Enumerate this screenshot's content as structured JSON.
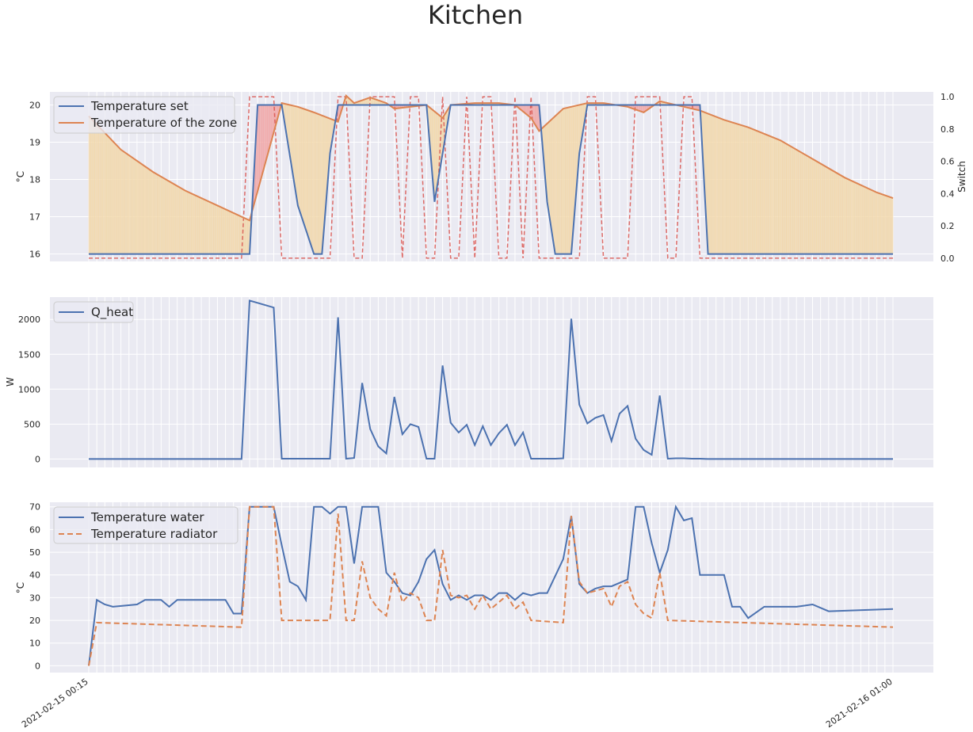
{
  "title": "Kitchen",
  "colors": {
    "background": "#EAEAF2",
    "grid": "#FFFFFF",
    "set": "#4C72B0",
    "zone": "#DD8452",
    "switch": "#D9534F",
    "fill_heating": "#F0A3A3",
    "fill_cooling": "#F2D7A8"
  },
  "chart_data": [
    {
      "type": "line",
      "ylabel": "°C",
      "ylabel2": "Switch",
      "ylim": [
        15.8,
        20.35
      ],
      "ylim2": [
        -0.02,
        1.03
      ],
      "yticks": [
        16,
        17,
        18,
        19,
        20
      ],
      "yticks2": [
        0.0,
        0.2,
        0.4,
        0.6,
        0.8,
        1.0
      ],
      "grid": true,
      "legend": "upper left",
      "legend_entries": [
        "Temperature set",
        "Temperature of the zone"
      ],
      "series": [
        {
          "name": "Temperature set",
          "x": [
            0,
            20,
            21,
            24,
            26,
            28,
            29,
            30,
            31,
            42,
            43,
            44,
            45,
            56,
            57,
            58,
            60,
            61,
            62,
            76,
            77,
            86,
            90,
            100
          ],
          "values": [
            16,
            16,
            20,
            20,
            17.3,
            16,
            16,
            18.7,
            20,
            20,
            17.4,
            18.7,
            20,
            20,
            17.4,
            16,
            16,
            18.7,
            20,
            20,
            16,
            16,
            16,
            16
          ]
        },
        {
          "name": "Temperature of the zone",
          "x": [
            0,
            4,
            8,
            12,
            16,
            20,
            24,
            26,
            28,
            31,
            32,
            33,
            35,
            37,
            38,
            42,
            44,
            45,
            48,
            51,
            53,
            55,
            56,
            59,
            61,
            62,
            64,
            67,
            69,
            71,
            73,
            75,
            76,
            79,
            82,
            86,
            90,
            94,
            98,
            100
          ],
          "values": [
            19.7,
            18.8,
            18.2,
            17.7,
            17.3,
            16.9,
            20.05,
            19.95,
            19.8,
            19.55,
            20.25,
            20.05,
            20.2,
            20.05,
            19.9,
            20.0,
            19.65,
            20.0,
            20.05,
            20.05,
            20.0,
            19.65,
            19.3,
            19.9,
            20.0,
            20.05,
            20.05,
            19.95,
            19.8,
            20.1,
            20.0,
            19.9,
            19.85,
            19.6,
            19.4,
            19.05,
            18.55,
            18.05,
            17.65,
            17.5
          ]
        },
        {
          "name": "Switch",
          "axis": "right",
          "x": [
            0,
            19,
            20,
            23,
            24,
            30,
            31,
            32,
            33,
            34,
            35,
            38,
            39,
            40,
            41,
            42,
            43,
            44,
            45,
            46,
            47,
            48,
            49,
            50,
            51,
            52,
            53,
            54,
            55,
            56,
            57,
            61,
            62,
            63,
            64,
            67,
            68,
            71,
            72,
            73,
            74,
            75,
            76,
            100
          ],
          "values": [
            0,
            0,
            1,
            1,
            0,
            0,
            1,
            1,
            0,
            0,
            1,
            1,
            0,
            1,
            1,
            0,
            0,
            1,
            0,
            0,
            1,
            0,
            1,
            1,
            0,
            0,
            1,
            0,
            1,
            0,
            0,
            0,
            1,
            1,
            0,
            0,
            1,
            1,
            0,
            0,
            1,
            1,
            0,
            0
          ]
        }
      ]
    },
    {
      "type": "line",
      "ylabel": "W",
      "ylim": [
        -120,
        2320
      ],
      "yticks": [
        0,
        500,
        1000,
        1500,
        2000
      ],
      "grid": true,
      "legend": "upper left",
      "legend_entries": [
        "Q_heat"
      ],
      "series": [
        {
          "name": "Q_heat",
          "x": [
            0,
            18,
            19,
            20,
            23,
            24,
            26,
            28,
            30,
            31,
            32,
            33,
            34,
            35,
            36,
            37,
            38,
            39,
            40,
            41,
            42,
            43,
            44,
            45,
            46,
            47,
            48,
            49,
            50,
            51,
            52,
            53,
            54,
            55,
            56,
            58,
            59,
            60,
            61,
            62,
            63,
            64,
            65,
            66,
            67,
            68,
            69,
            70,
            71,
            72,
            73,
            74,
            75,
            76,
            77,
            100
          ],
          "values": [
            0,
            0,
            0,
            2270,
            2170,
            5,
            5,
            5,
            5,
            2030,
            5,
            15,
            1090,
            430,
            180,
            80,
            890,
            355,
            500,
            460,
            5,
            5,
            1340,
            520,
            380,
            490,
            200,
            470,
            200,
            370,
            490,
            200,
            380,
            5,
            5,
            5,
            10,
            2010,
            780,
            510,
            590,
            630,
            260,
            650,
            760,
            290,
            130,
            60,
            910,
            5,
            10,
            10,
            5,
            5,
            0,
            0
          ]
        }
      ]
    },
    {
      "type": "line",
      "ylabel": "°C",
      "ylim": [
        -3,
        72
      ],
      "yticks": [
        0,
        10,
        20,
        30,
        40,
        50,
        60,
        70
      ],
      "grid": true,
      "legend": "upper left",
      "legend_entries": [
        "Temperature water",
        "Temperature radiator"
      ],
      "x_tick_first": "2021-02-15 00:15",
      "x_tick_last": "2021-02-16 01:00",
      "series": [
        {
          "name": "Temperature water",
          "x": [
            0,
            1,
            2,
            3,
            6,
            7,
            9,
            10,
            11,
            17,
            18,
            19,
            20,
            22,
            23,
            24,
            25,
            26,
            27,
            28,
            29,
            30,
            31,
            32,
            33,
            34,
            35,
            36,
            37,
            38,
            39,
            40,
            41,
            42,
            43,
            44,
            45,
            46,
            47,
            48,
            49,
            50,
            51,
            52,
            53,
            54,
            55,
            56,
            57,
            59,
            60,
            61,
            62,
            63,
            64,
            65,
            67,
            68,
            69,
            70,
            71,
            72,
            73,
            74,
            75,
            76,
            79,
            80,
            81,
            82,
            84,
            88,
            90,
            92,
            100
          ],
          "values": [
            0,
            29,
            27,
            26,
            27,
            29,
            29,
            26,
            29,
            29,
            23,
            23,
            70,
            70,
            70,
            53,
            37,
            35,
            29,
            70,
            70,
            67,
            70,
            70,
            45,
            70,
            70,
            70,
            41,
            37,
            32,
            31,
            37,
            47,
            51,
            36,
            29,
            31,
            29,
            31,
            31,
            29,
            32,
            32,
            29,
            32,
            31,
            32,
            32,
            47,
            66,
            36,
            32,
            34,
            35,
            35,
            38,
            70,
            70,
            54,
            41,
            51,
            70,
            64,
            65,
            40,
            40,
            26,
            26,
            21,
            26,
            26,
            27,
            24,
            25
          ]
        },
        {
          "name": "Temperature radiator",
          "x": [
            0,
            1,
            19,
            20,
            23,
            24,
            30,
            31,
            32,
            33,
            34,
            35,
            36,
            37,
            38,
            39,
            40,
            41,
            42,
            43,
            44,
            45,
            46,
            47,
            48,
            49,
            50,
            51,
            52,
            53,
            54,
            55,
            59,
            60,
            61,
            62,
            63,
            64,
            65,
            66,
            67,
            68,
            69,
            70,
            71,
            72,
            100
          ],
          "values": [
            0,
            19,
            17,
            70,
            70,
            20,
            20,
            67,
            20,
            20,
            46,
            30,
            25,
            22,
            41,
            28,
            32,
            30,
            20,
            20,
            51,
            31,
            30,
            31,
            25,
            31,
            25,
            28,
            31,
            25,
            28,
            20,
            19,
            66,
            37,
            32,
            33,
            34,
            26,
            35,
            37,
            27,
            23,
            21,
            41,
            20,
            17
          ]
        }
      ]
    }
  ]
}
